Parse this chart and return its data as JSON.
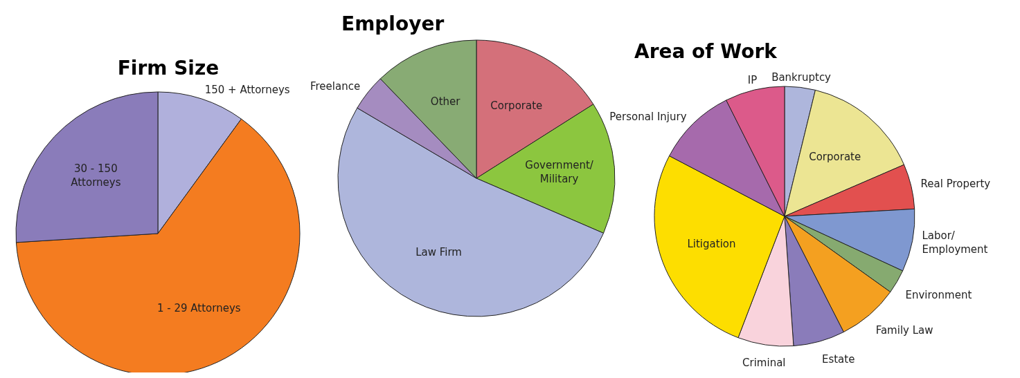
{
  "chart_data": [
    {
      "type": "pie",
      "title": "Firm Size",
      "categories": [
        "150 + Attorneys",
        "1 - 29 Attorneys",
        "30 - 150\nAttorneys"
      ],
      "values": [
        10,
        64,
        26
      ],
      "colors": [
        "#b0b0dc",
        "#f47c20",
        "#8a7cba"
      ]
    },
    {
      "type": "pie",
      "title": "Employer",
      "categories": [
        "Corporate",
        "Government/\nMilitary",
        "Law Firm",
        "Freelance",
        "Other"
      ],
      "values": [
        16,
        15.5,
        52,
        4.3,
        12.2
      ],
      "colors": [
        "#d4707a",
        "#8cc63f",
        "#aeb6dc",
        "#a58cc0",
        "#88ab74"
      ]
    },
    {
      "type": "pie",
      "title": "Area of Work",
      "categories": [
        "Bankruptcy",
        "Corporate",
        "Real Property",
        "Labor/\nEmployment",
        "Environment",
        "Family Law",
        "Estate",
        "Criminal",
        "Litigation",
        "Personal Injury",
        "IP"
      ],
      "values": [
        3.8,
        14.7,
        5.6,
        7.8,
        3,
        7.6,
        6.4,
        6.9,
        26.9,
        9.9,
        7.4
      ],
      "colors": [
        "#aeb6dc",
        "#ece593",
        "#e2504f",
        "#7f98d0",
        "#86aa70",
        "#f4a020",
        "#8a7cba",
        "#f9d3dc",
        "#fdde00",
        "#a66aac",
        "#dc5a8a"
      ]
    }
  ]
}
